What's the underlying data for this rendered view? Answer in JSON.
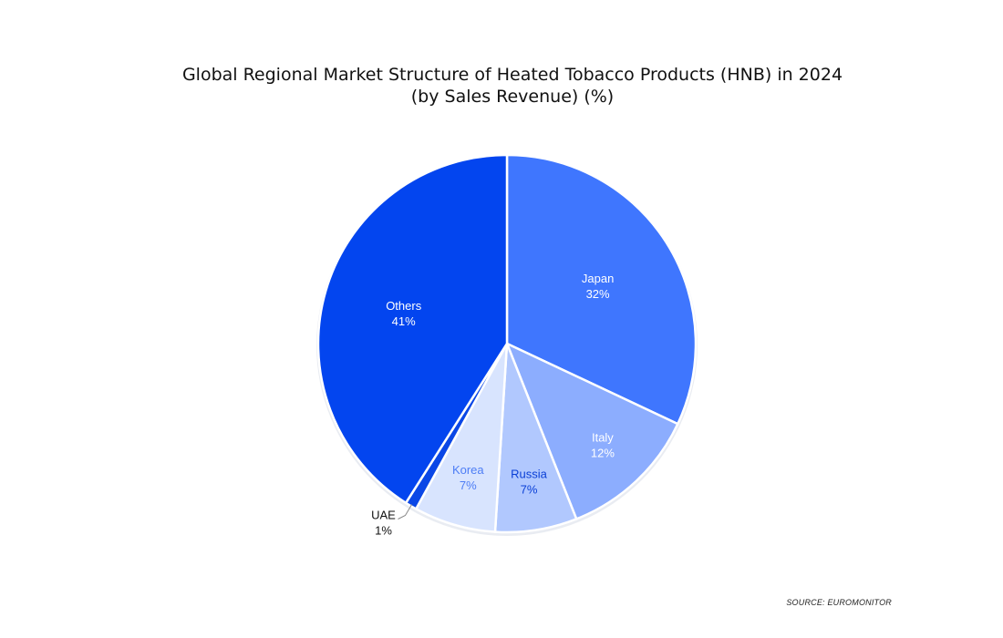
{
  "chart_data": {
    "type": "pie",
    "title": "Global Regional Market Structure of Heated Tobacco Products (HNB) in 2024",
    "subtitle": "(by Sales Revenue) (%)",
    "unit": "%",
    "slices": [
      {
        "label": "Japan",
        "value": 32,
        "value_label": "32%",
        "color": "#3f76fe",
        "text_color": "#ffffff"
      },
      {
        "label": "Italy",
        "value": 12,
        "value_label": "12%",
        "color": "#8cadfe",
        "text_color": "#ffffff"
      },
      {
        "label": "Russia",
        "value": 7,
        "value_label": "7%",
        "color": "#b1c8fe",
        "text_color": "#0a3fd6"
      },
      {
        "label": "Korea",
        "value": 7,
        "value_label": "7%",
        "color": "#d8e4fe",
        "text_color": "#4d7df5"
      },
      {
        "label": "UAE",
        "value": 1,
        "value_label": "1%",
        "color": "#0b47e6",
        "text_color": "#111111"
      },
      {
        "label": "Others",
        "value": 41,
        "value_label": "41%",
        "color": "#0345ef",
        "text_color": "#ffffff"
      }
    ],
    "start_angle_deg": 0,
    "direction": "clockwise",
    "legend": "none"
  },
  "source": "SOURCE: EUROMONITOR"
}
